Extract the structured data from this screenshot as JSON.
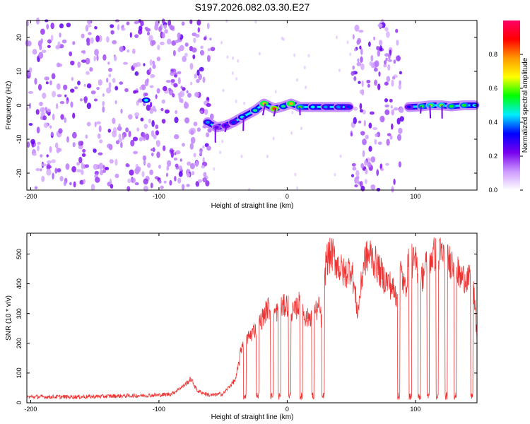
{
  "figure_title": "S197.2026.082.03.30.E27",
  "chart_data": [
    {
      "type": "heatmap",
      "title": "",
      "xlabel": "Height of straight line (km)",
      "ylabel": "Frequency (Hz)",
      "xlim": [
        -203,
        148
      ],
      "ylim": [
        -25,
        25
      ],
      "xticks": [
        -200,
        -100,
        0,
        100
      ],
      "yticks": [
        -20,
        -10,
        0,
        10,
        20
      ],
      "colorbar": {
        "label": "Normalized spectral amplitude",
        "range": [
          0.0,
          1.0
        ],
        "ticks": [
          0.0,
          0.2,
          0.4,
          0.6,
          0.8
        ],
        "colormap": [
          "#ffffff",
          "#cc99ff",
          "#7700ee",
          "#0000ff",
          "#00eeff",
          "#00ff00",
          "#ffff00",
          "#ff9900",
          "#ff0000",
          "#ff0066"
        ]
      },
      "noise_regions_km": [
        [
          -203,
          -58
        ],
        [
          50,
          90
        ]
      ],
      "signal_track": [
        {
          "x": -110,
          "freq": 1.5,
          "amp": 0.45
        },
        {
          "x": -62,
          "freq": -5.0,
          "amp": 0.4
        },
        {
          "x": -55,
          "freq": -6.5,
          "amp": 0.25
        },
        {
          "x": -48,
          "freq": -6.0,
          "amp": 0.3
        },
        {
          "x": -42,
          "freq": -5.0,
          "amp": 0.35
        },
        {
          "x": -35,
          "freq": -3.5,
          "amp": 0.45
        },
        {
          "x": -25,
          "freq": -1.5,
          "amp": 0.5
        },
        {
          "x": -18,
          "freq": 0.5,
          "amp": 0.75
        },
        {
          "x": -10,
          "freq": -1.0,
          "amp": 0.85
        },
        {
          "x": -3,
          "freq": -0.3,
          "amp": 0.5
        },
        {
          "x": 3,
          "freq": 0.5,
          "amp": 0.75
        },
        {
          "x": 10,
          "freq": -0.5,
          "amp": 0.55
        },
        {
          "x": 20,
          "freq": -0.5,
          "amp": 0.45
        },
        {
          "x": 30,
          "freq": -0.5,
          "amp": 0.4
        },
        {
          "x": 40,
          "freq": -0.5,
          "amp": 0.4
        },
        {
          "x": 48,
          "freq": -0.5,
          "amp": 0.35
        },
        {
          "x": 95,
          "freq": -0.5,
          "amp": 0.3
        },
        {
          "x": 105,
          "freq": -0.3,
          "amp": 0.55
        },
        {
          "x": 112,
          "freq": 0.0,
          "amp": 0.6
        },
        {
          "x": 120,
          "freq": 0.0,
          "amp": 0.6
        },
        {
          "x": 128,
          "freq": -0.3,
          "amp": 0.55
        },
        {
          "x": 138,
          "freq": 0.0,
          "amp": 0.55
        },
        {
          "x": 146,
          "freq": 0.0,
          "amp": 0.45
        }
      ]
    },
    {
      "type": "line",
      "title": "",
      "xlabel": "Height of straight line (km)",
      "ylabel": "SNR (10 * v/v)",
      "xlim": [
        -203,
        148
      ],
      "ylim": [
        0,
        570
      ],
      "xticks": [
        -200,
        -100,
        0,
        100
      ],
      "yticks": [
        0,
        100,
        200,
        300,
        400,
        500
      ],
      "color": "#ee3333",
      "series": [
        {
          "name": "SNR",
          "x": [
            -203,
            -180,
            -160,
            -140,
            -120,
            -100,
            -90,
            -80,
            -75,
            -70,
            -60,
            -50,
            -40,
            -35,
            -30,
            -25,
            -20,
            -15,
            -10,
            -5,
            0,
            5,
            10,
            15,
            20,
            25,
            28,
            30,
            35,
            40,
            45,
            50,
            55,
            60,
            65,
            70,
            75,
            80,
            85,
            88,
            92,
            95,
            100,
            105,
            110,
            115,
            120,
            125,
            130,
            135,
            140,
            145,
            148
          ],
          "y": [
            20,
            20,
            20,
            22,
            24,
            26,
            30,
            60,
            80,
            40,
            25,
            30,
            80,
            200,
            220,
            250,
            280,
            320,
            300,
            320,
            330,
            300,
            340,
            280,
            300,
            320,
            250,
            480,
            500,
            460,
            430,
            460,
            300,
            480,
            500,
            460,
            420,
            400,
            360,
            450,
            380,
            480,
            470,
            420,
            480,
            500,
            500,
            480,
            470,
            420,
            420,
            400,
            220
          ]
        }
      ],
      "dropout_centers_km": [
        -33,
        -23,
        -12,
        -6,
        2,
        11,
        20,
        28,
        87,
        96,
        103,
        110,
        117,
        124,
        131,
        144
      ]
    }
  ]
}
